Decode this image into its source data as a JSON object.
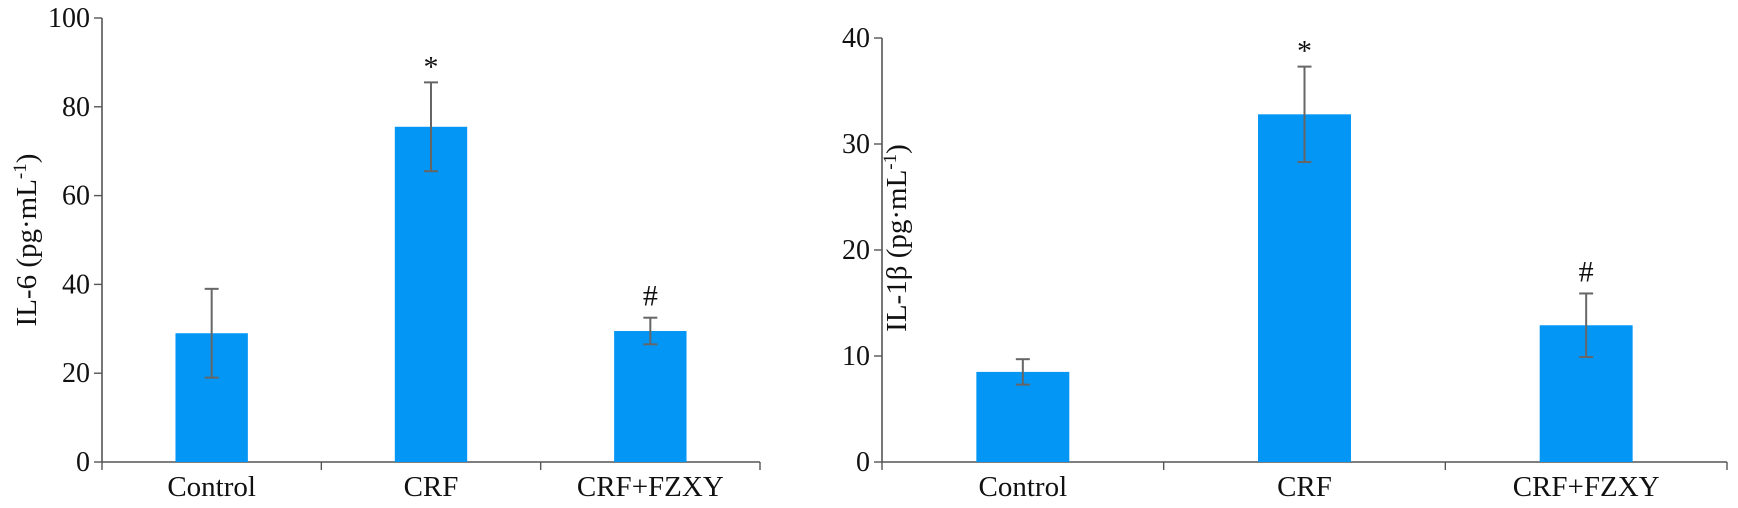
{
  "chart_data": [
    {
      "type": "bar",
      "categories": [
        "Control",
        "CRF",
        "CRF+FZXY"
      ],
      "values": [
        29,
        75.5,
        29.5
      ],
      "errors": [
        10,
        10,
        3
      ],
      "annotations": [
        "",
        "*",
        "#"
      ],
      "ylabel_main": "IL-6 (pg·mL",
      "ylabel_sup": "-1",
      "ylabel_close": ")",
      "ylim": [
        0,
        100
      ],
      "yticks": [
        0,
        20,
        40,
        60,
        80,
        100
      ],
      "color": "#0396f5",
      "grid": false
    },
    {
      "type": "bar",
      "categories": [
        "Control",
        "CRF",
        "CRF+FZXY"
      ],
      "values": [
        8.5,
        32.8,
        12.9
      ],
      "errors": [
        1.2,
        4.5,
        3
      ],
      "annotations": [
        "",
        "*",
        "#"
      ],
      "ylabel_main": "IL-1β (pg·mL",
      "ylabel_sup": "-1",
      "ylabel_close": ")",
      "ylim": [
        0,
        40
      ],
      "yticks": [
        0,
        10,
        20,
        30,
        40
      ],
      "color": "#0396f5",
      "grid": false
    }
  ]
}
